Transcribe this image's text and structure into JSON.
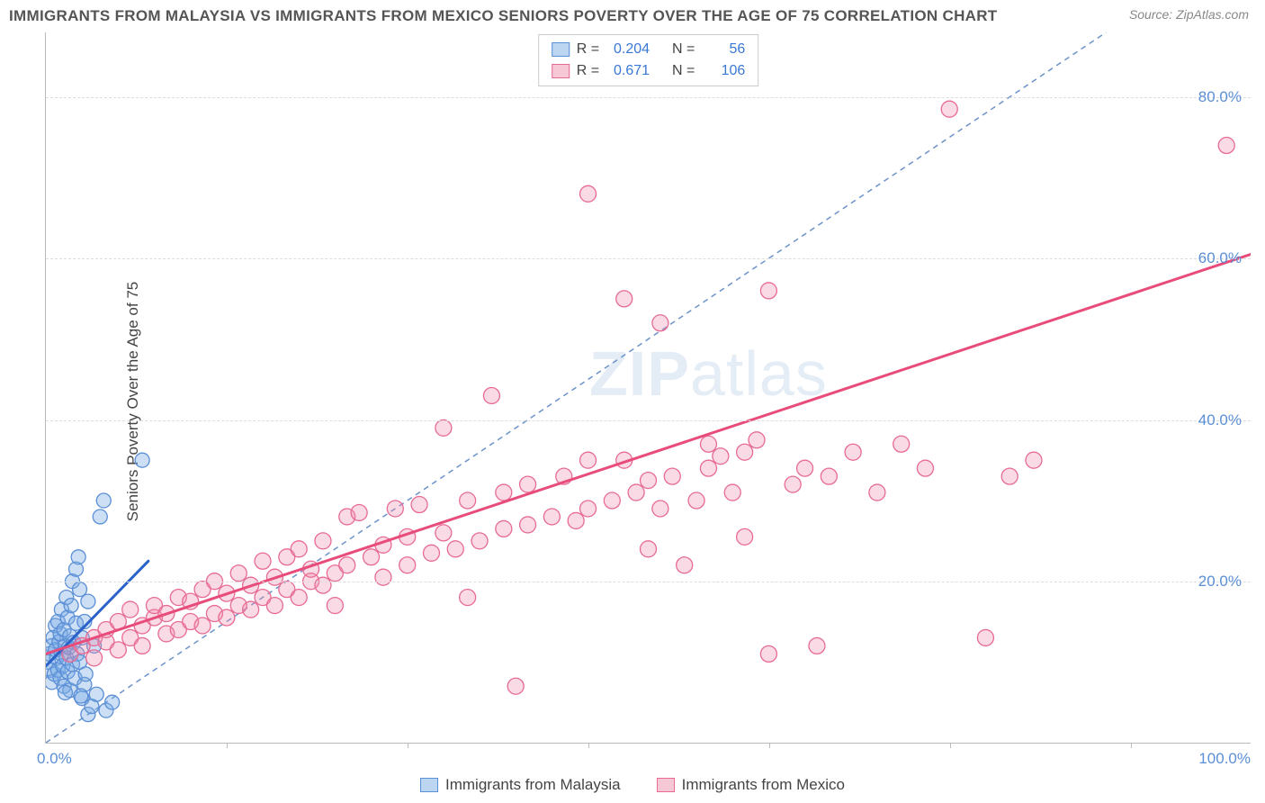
{
  "title": "IMMIGRANTS FROM MALAYSIA VS IMMIGRANTS FROM MEXICO SENIORS POVERTY OVER THE AGE OF 75 CORRELATION CHART",
  "source": "Source: ZipAtlas.com",
  "ylabel": "Seniors Poverty Over the Age of 75",
  "watermark_bold": "ZIP",
  "watermark_thin": "atlas",
  "chart": {
    "type": "scatter",
    "xlim": [
      0,
      100
    ],
    "ylim": [
      0,
      88
    ],
    "xticks_minor": [
      15,
      30,
      45,
      60,
      75,
      90
    ],
    "yticks": [
      20,
      40,
      60,
      80
    ],
    "ytick_labels": [
      "20.0%",
      "40.0%",
      "60.0%",
      "80.0%"
    ],
    "xtick_left": "0.0%",
    "xtick_right": "100.0%",
    "grid_color": "#dddddd",
    "axis_color": "#bbbbbb",
    "tick_label_color": "#5b8fd6",
    "tick_fontsize": 17,
    "label_fontsize": 17,
    "reference_line": {
      "x1": 0,
      "y1": 0,
      "x2": 88,
      "y2": 88,
      "color": "#6b93c9",
      "dash": "6,5",
      "width": 1.5
    },
    "series": [
      {
        "name": "Immigrants from Malaysia",
        "R": "0.204",
        "N": "56",
        "marker_fill": "rgba(120,170,230,0.38)",
        "marker_stroke": "#5b8fd6",
        "marker_radius": 8,
        "swatch_fill": "#bcd5f0",
        "swatch_border": "#5b8fd6",
        "trend": {
          "x1": 0,
          "y1": 9.5,
          "x2": 8.5,
          "y2": 22.5,
          "color": "#2b62c9",
          "width": 3
        },
        "points": [
          [
            0.2,
            10.0
          ],
          [
            0.3,
            11.0
          ],
          [
            0.4,
            9.0
          ],
          [
            0.5,
            12.0
          ],
          [
            0.5,
            7.5
          ],
          [
            0.6,
            13.0
          ],
          [
            0.7,
            8.5
          ],
          [
            0.8,
            11.5
          ],
          [
            0.8,
            14.5
          ],
          [
            0.9,
            10.5
          ],
          [
            1.0,
            9.0
          ],
          [
            1.0,
            15.0
          ],
          [
            1.1,
            12.5
          ],
          [
            1.2,
            8.0
          ],
          [
            1.2,
            13.5
          ],
          [
            1.3,
            11.0
          ],
          [
            1.3,
            16.5
          ],
          [
            1.4,
            9.5
          ],
          [
            1.5,
            14.0
          ],
          [
            1.5,
            7.0
          ],
          [
            1.6,
            12.0
          ],
          [
            1.7,
            10.5
          ],
          [
            1.7,
            18.0
          ],
          [
            1.8,
            8.8
          ],
          [
            1.8,
            15.5
          ],
          [
            1.9,
            11.8
          ],
          [
            2.0,
            13.2
          ],
          [
            2.0,
            6.5
          ],
          [
            2.1,
            17.0
          ],
          [
            2.2,
            9.7
          ],
          [
            2.2,
            20.0
          ],
          [
            2.3,
            12.4
          ],
          [
            2.4,
            8.0
          ],
          [
            2.5,
            14.8
          ],
          [
            2.5,
            21.5
          ],
          [
            2.6,
            11.0
          ],
          [
            2.7,
            23.0
          ],
          [
            2.8,
            10.0
          ],
          [
            2.8,
            19.0
          ],
          [
            3.0,
            13.0
          ],
          [
            3.0,
            5.5
          ],
          [
            3.2,
            15.0
          ],
          [
            3.2,
            7.2
          ],
          [
            3.5,
            17.5
          ],
          [
            3.5,
            3.5
          ],
          [
            3.8,
            4.5
          ],
          [
            4.0,
            12.0
          ],
          [
            4.2,
            6.0
          ],
          [
            4.5,
            28.0
          ],
          [
            4.8,
            30.0
          ],
          [
            5.0,
            4.0
          ],
          [
            5.5,
            5.0
          ],
          [
            2.9,
            5.8
          ],
          [
            3.3,
            8.5
          ],
          [
            8.0,
            35.0
          ],
          [
            1.6,
            6.2
          ]
        ]
      },
      {
        "name": "Immigrants from Mexico",
        "R": "0.671",
        "N": "106",
        "marker_fill": "rgba(240,140,170,0.32)",
        "marker_stroke": "#e76b94",
        "marker_radius": 9,
        "swatch_fill": "#f6c8d6",
        "swatch_border": "#e76b94",
        "trend": {
          "x1": 0,
          "y1": 11.0,
          "x2": 100,
          "y2": 60.5,
          "color": "#e84c7a",
          "width": 3
        },
        "points": [
          [
            2,
            11
          ],
          [
            3,
            12
          ],
          [
            4,
            10.5
          ],
          [
            4,
            13
          ],
          [
            5,
            12.5
          ],
          [
            5,
            14
          ],
          [
            6,
            11.5
          ],
          [
            6,
            15
          ],
          [
            7,
            13
          ],
          [
            7,
            16.5
          ],
          [
            8,
            12
          ],
          [
            8,
            14.5
          ],
          [
            9,
            15.5
          ],
          [
            9,
            17
          ],
          [
            10,
            13.5
          ],
          [
            10,
            16
          ],
          [
            11,
            14
          ],
          [
            11,
            18
          ],
          [
            12,
            15
          ],
          [
            12,
            17.5
          ],
          [
            13,
            14.5
          ],
          [
            13,
            19
          ],
          [
            14,
            16
          ],
          [
            14,
            20
          ],
          [
            15,
            15.5
          ],
          [
            15,
            18.5
          ],
          [
            16,
            17
          ],
          [
            16,
            21
          ],
          [
            17,
            16.5
          ],
          [
            17,
            19.5
          ],
          [
            18,
            18
          ],
          [
            18,
            22.5
          ],
          [
            19,
            17
          ],
          [
            19,
            20.5
          ],
          [
            20,
            19
          ],
          [
            20,
            23
          ],
          [
            21,
            18
          ],
          [
            21,
            24
          ],
          [
            22,
            20
          ],
          [
            22,
            21.5
          ],
          [
            23,
            19.5
          ],
          [
            23,
            25
          ],
          [
            24,
            21
          ],
          [
            24,
            17
          ],
          [
            25,
            22
          ],
          [
            25,
            28
          ],
          [
            26,
            28.5
          ],
          [
            27,
            23
          ],
          [
            28,
            20.5
          ],
          [
            28,
            24.5
          ],
          [
            29,
            29
          ],
          [
            30,
            22
          ],
          [
            30,
            25.5
          ],
          [
            31,
            29.5
          ],
          [
            32,
            23.5
          ],
          [
            33,
            26
          ],
          [
            33,
            39
          ],
          [
            34,
            24
          ],
          [
            35,
            30
          ],
          [
            35,
            18
          ],
          [
            36,
            25
          ],
          [
            37,
            43
          ],
          [
            38,
            26.5
          ],
          [
            38,
            31
          ],
          [
            39,
            7
          ],
          [
            40,
            27
          ],
          [
            40,
            32
          ],
          [
            42,
            28
          ],
          [
            43,
            33
          ],
          [
            44,
            27.5
          ],
          [
            45,
            29
          ],
          [
            45,
            35
          ],
          [
            45,
            68
          ],
          [
            47,
            30
          ],
          [
            48,
            55
          ],
          [
            48,
            35
          ],
          [
            49,
            31
          ],
          [
            50,
            24
          ],
          [
            50,
            32.5
          ],
          [
            51,
            52
          ],
          [
            52,
            33
          ],
          [
            53,
            22
          ],
          [
            54,
            30
          ],
          [
            55,
            34
          ],
          [
            55,
            37
          ],
          [
            56,
            35.5
          ],
          [
            57,
            31
          ],
          [
            58,
            25.5
          ],
          [
            58,
            36
          ],
          [
            59,
            37.5
          ],
          [
            60,
            11
          ],
          [
            60,
            56
          ],
          [
            62,
            32
          ],
          [
            63,
            34
          ],
          [
            64,
            12
          ],
          [
            65,
            33
          ],
          [
            67,
            36
          ],
          [
            69,
            31
          ],
          [
            71,
            37
          ],
          [
            73,
            34
          ],
          [
            75,
            78.5
          ],
          [
            78,
            13
          ],
          [
            80,
            33
          ],
          [
            82,
            35
          ],
          [
            98,
            74
          ],
          [
            51,
            29
          ]
        ]
      }
    ],
    "legend": {
      "R_label": "R =",
      "N_label": "N ="
    },
    "bottom_legend": [
      {
        "label": "Immigrants from Malaysia",
        "swatch_fill": "#bcd5f0",
        "swatch_border": "#5b8fd6"
      },
      {
        "label": "Immigrants from Mexico",
        "swatch_fill": "#f6c8d6",
        "swatch_border": "#e76b94"
      }
    ]
  }
}
